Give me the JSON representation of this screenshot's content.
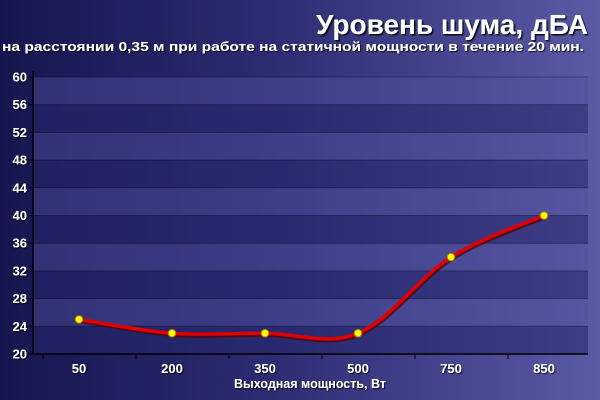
{
  "chart_data": {
    "type": "line",
    "title": "Уровень шума, дБА",
    "subtitle": "на расстоянии 0,35 м при работе на статичной мощности в течение 20 мин.",
    "xlabel": "Выходная мощность, Вт",
    "ylabel": "",
    "categories": [
      "50",
      "200",
      "350",
      "500",
      "750",
      "850"
    ],
    "series": [
      {
        "values": [
          25,
          23,
          23,
          23,
          34,
          40
        ]
      }
    ],
    "ylim": [
      20,
      60
    ],
    "yticks": [
      20,
      24,
      28,
      32,
      36,
      40,
      44,
      48,
      52,
      56,
      60
    ],
    "grid": true,
    "legend": "none",
    "colors": {
      "line": "#e00000",
      "marker_fill": "#ffff00",
      "marker_stroke": "#b07a00",
      "text": "#ffffff",
      "band_dark": "#26266d",
      "band_light": "#5353a2"
    }
  }
}
